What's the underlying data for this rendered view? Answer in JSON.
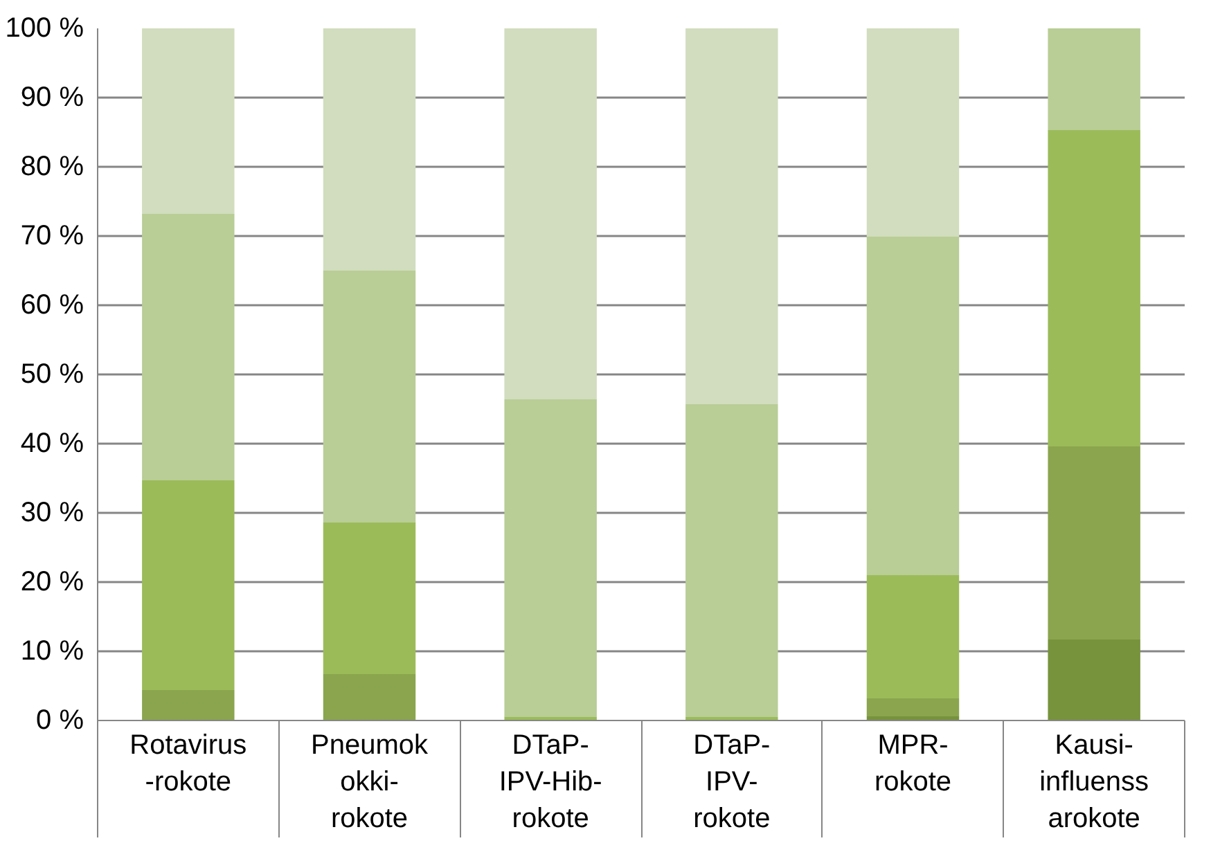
{
  "chart_data": {
    "type": "bar",
    "stacked": true,
    "categories": [
      "Rotavirus\n-rokote",
      "Pneumok\nokki-\nrokote",
      "DTaP-\nIPV-Hib-\nrokote",
      "DTaP-\nIPV-\nrokote",
      "MPR-\nrokote",
      "Kausi-\ninfluenss\narokote"
    ],
    "series": [
      {
        "color": "#77933c",
        "values": [
          0,
          0,
          0,
          0,
          0.6,
          11.7
        ]
      },
      {
        "color": "#8aa54e",
        "values": [
          4.4,
          6.7,
          0,
          0,
          2.6,
          27.9
        ]
      },
      {
        "color": "#9bbb59",
        "values": [
          30.3,
          21.9,
          0.5,
          0.5,
          17.8,
          45.7
        ]
      },
      {
        "color": "#b9cd96",
        "values": [
          38.5,
          36.4,
          45.9,
          45.2,
          48.9,
          14.7
        ]
      },
      {
        "color": "#d1ddbe",
        "values": [
          26.8,
          35.0,
          53.6,
          54.3,
          30.1,
          0
        ]
      }
    ],
    "ylim": [
      0,
      100
    ],
    "yticks": [
      {
        "value": 0,
        "label": "0 %"
      },
      {
        "value": 10,
        "label": "10 %"
      },
      {
        "value": 20,
        "label": "20 %"
      },
      {
        "value": 30,
        "label": "30 %"
      },
      {
        "value": 40,
        "label": "40 %"
      },
      {
        "value": 50,
        "label": "50 %"
      },
      {
        "value": 60,
        "label": "60 %"
      },
      {
        "value": 70,
        "label": "70 %"
      },
      {
        "value": 80,
        "label": "80 %"
      },
      {
        "value": 90,
        "label": "90 %"
      },
      {
        "value": 100,
        "label": "100 %"
      }
    ],
    "grid": "y"
  }
}
